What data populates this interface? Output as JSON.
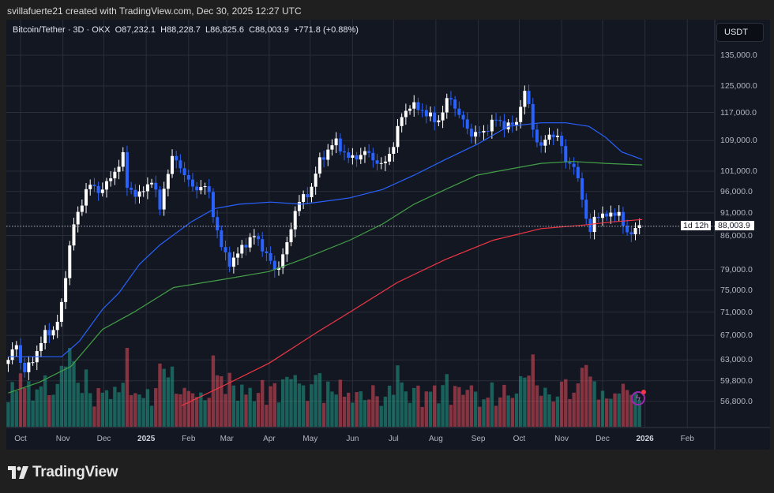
{
  "header": {
    "credit": "svillafuerte21 created with TradingView.com, Dec 30, 2025 12:27 UTC"
  },
  "legend": {
    "symbol": "Bitcoin/Tether · 3D · OKX",
    "open": "O87,232.1",
    "high": "H88,228.7",
    "low": "L86,825.6",
    "close": "C88,003.9",
    "change": "+771.8 (+0.88%)"
  },
  "price_axis": {
    "currency": "USDT",
    "ticks": [
      "135,000.0",
      "125,000.0",
      "117,000.0",
      "109,000.0",
      "101,000.0",
      "96,000.0",
      "91,000.0",
      "86,000.0",
      "79,000.0",
      "75,000.0",
      "71,000.0",
      "67,000.0",
      "63,000.0",
      "59,800.0",
      "56,800.0"
    ],
    "last_price": "88,003.9",
    "countdown": "1d 12h"
  },
  "time_axis": {
    "ticks": [
      {
        "label": "Oct",
        "date": "2024-10-01",
        "bold": false
      },
      {
        "label": "Nov",
        "date": "2024-11-01",
        "bold": false
      },
      {
        "label": "Dec",
        "date": "2024-12-01",
        "bold": false
      },
      {
        "label": "2025",
        "date": "2025-01-01",
        "bold": true
      },
      {
        "label": "Feb",
        "date": "2025-02-01",
        "bold": false
      },
      {
        "label": "Mar",
        "date": "2025-03-01",
        "bold": false
      },
      {
        "label": "Apr",
        "date": "2025-04-01",
        "bold": false
      },
      {
        "label": "May",
        "date": "2025-05-01",
        "bold": false
      },
      {
        "label": "Jun",
        "date": "2025-06-01",
        "bold": false
      },
      {
        "label": "Jul",
        "date": "2025-07-01",
        "bold": false
      },
      {
        "label": "Aug",
        "date": "2025-08-01",
        "bold": false
      },
      {
        "label": "Sep",
        "date": "2025-09-01",
        "bold": false
      },
      {
        "label": "Oct",
        "date": "2025-10-01",
        "bold": false
      },
      {
        "label": "Nov",
        "date": "2025-11-01",
        "bold": false
      },
      {
        "label": "Dec",
        "date": "2025-12-01",
        "bold": false
      },
      {
        "label": "2026",
        "date": "2026-01-01",
        "bold": true
      },
      {
        "label": "Feb",
        "date": "2026-02-01",
        "bold": false
      }
    ]
  },
  "chart_data": {
    "type": "candlestick",
    "interval": "3D",
    "y_scale": "log",
    "ylim": [
      56000,
      140000
    ],
    "grid": true,
    "colors": {
      "up": "#ffffff",
      "down": "#2962ff",
      "vol_up": "#22ab94",
      "vol_down": "#f7525f",
      "ma_blue": "#2962ff",
      "ma_green": "#43a047",
      "ma_red": "#f23645"
    },
    "close_path": [
      [
        "2024-09-22",
        63000
      ],
      [
        "2024-09-28",
        65500
      ],
      [
        "2024-10-03",
        61000
      ],
      [
        "2024-10-09",
        62500
      ],
      [
        "2024-10-18",
        67000
      ],
      [
        "2024-10-26",
        68000
      ],
      [
        "2024-10-31",
        72000
      ],
      [
        "2024-11-04",
        80000
      ],
      [
        "2024-11-08",
        88000
      ],
      [
        "2024-11-13",
        91000
      ],
      [
        "2024-11-19",
        98000
      ],
      [
        "2024-11-27",
        96000
      ],
      [
        "2024-12-06",
        99000
      ],
      [
        "2024-12-15",
        105000
      ],
      [
        "2024-12-18",
        97000
      ],
      [
        "2024-12-27",
        95000
      ],
      [
        "2025-01-05",
        99000
      ],
      [
        "2025-01-11",
        92000
      ],
      [
        "2025-01-16",
        100000
      ],
      [
        "2025-01-21",
        105000
      ],
      [
        "2025-01-28",
        101000
      ],
      [
        "2025-02-03",
        97000
      ],
      [
        "2025-02-15",
        97000
      ],
      [
        "2025-02-24",
        84000
      ],
      [
        "2025-03-04",
        80000
      ],
      [
        "2025-03-13",
        84000
      ],
      [
        "2025-03-22",
        86000
      ],
      [
        "2025-04-06",
        78500
      ],
      [
        "2025-04-14",
        84000
      ],
      [
        "2025-04-21",
        93000
      ],
      [
        "2025-05-01",
        96000
      ],
      [
        "2025-05-07",
        103000
      ],
      [
        "2025-05-19",
        109000
      ],
      [
        "2025-05-30",
        104000
      ],
      [
        "2025-06-11",
        106000
      ],
      [
        "2025-06-23",
        102000
      ],
      [
        "2025-07-01",
        108000
      ],
      [
        "2025-07-07",
        116000
      ],
      [
        "2025-07-13",
        119000
      ],
      [
        "2025-07-21",
        118000
      ],
      [
        "2025-08-02",
        114000
      ],
      [
        "2025-08-11",
        122000
      ],
      [
        "2025-08-17",
        117000
      ],
      [
        "2025-08-26",
        111000
      ],
      [
        "2025-09-04",
        111000
      ],
      [
        "2025-09-13",
        115000
      ],
      [
        "2025-09-22",
        113000
      ],
      [
        "2025-09-30",
        114000
      ],
      [
        "2025-10-03",
        123000
      ],
      [
        "2025-10-07",
        122000
      ],
      [
        "2025-10-11",
        112000
      ],
      [
        "2025-10-17",
        107000
      ],
      [
        "2025-10-23",
        111000
      ],
      [
        "2025-10-29",
        110000
      ],
      [
        "2025-11-04",
        104000
      ],
      [
        "2025-11-10",
        102000
      ],
      [
        "2025-11-16",
        95000
      ],
      [
        "2025-11-21",
        86000
      ],
      [
        "2025-11-27",
        91000
      ],
      [
        "2025-12-06",
        90000
      ],
      [
        "2025-12-12",
        92000
      ],
      [
        "2025-12-18",
        86000
      ],
      [
        "2025-12-24",
        87500
      ],
      [
        "2025-12-30",
        88003.9
      ]
    ],
    "moving_averages": [
      {
        "color": "#2962ff",
        "points": [
          [
            "2024-09-22",
            63500
          ],
          [
            "2024-10-31",
            63500
          ],
          [
            "2024-11-13",
            66000
          ],
          [
            "2024-11-30",
            71500
          ],
          [
            "2024-12-12",
            74500
          ],
          [
            "2024-12-27",
            80000
          ],
          [
            "2025-01-11",
            84000
          ],
          [
            "2025-02-03",
            89000
          ],
          [
            "2025-02-20",
            92000
          ],
          [
            "2025-03-10",
            93000
          ],
          [
            "2025-04-02",
            93500
          ],
          [
            "2025-04-25",
            93000
          ],
          [
            "2025-05-19",
            94000
          ],
          [
            "2025-05-30",
            94500
          ],
          [
            "2025-06-23",
            96500
          ],
          [
            "2025-07-16",
            100000
          ],
          [
            "2025-08-08",
            104000
          ],
          [
            "2025-08-31",
            108000
          ],
          [
            "2025-09-23",
            113000
          ],
          [
            "2025-10-17",
            114000
          ],
          [
            "2025-11-04",
            114000
          ],
          [
            "2025-11-21",
            113000
          ],
          [
            "2025-12-03",
            110000
          ],
          [
            "2025-12-15",
            106000
          ],
          [
            "2025-12-30",
            104000
          ]
        ]
      },
      {
        "color": "#43a047",
        "points": [
          [
            "2024-09-22",
            58000
          ],
          [
            "2024-10-15",
            59600
          ],
          [
            "2024-11-07",
            62000
          ],
          [
            "2024-11-30",
            68000
          ],
          [
            "2024-12-23",
            71000
          ],
          [
            "2025-01-21",
            75500
          ],
          [
            "2025-02-25",
            77000
          ],
          [
            "2025-04-01",
            78600
          ],
          [
            "2025-04-25",
            81000
          ],
          [
            "2025-05-30",
            85000
          ],
          [
            "2025-06-23",
            88500
          ],
          [
            "2025-07-16",
            93000
          ],
          [
            "2025-08-08",
            96500
          ],
          [
            "2025-08-31",
            100000
          ],
          [
            "2025-09-23",
            101500
          ],
          [
            "2025-10-17",
            103000
          ],
          [
            "2025-11-09",
            103500
          ],
          [
            "2025-12-03",
            103000
          ],
          [
            "2025-12-30",
            102600
          ]
        ]
      },
      {
        "color": "#f23645",
        "points": [
          [
            "2025-01-27",
            56200
          ],
          [
            "2025-02-26",
            59000
          ],
          [
            "2025-04-01",
            62500
          ],
          [
            "2025-05-06",
            67500
          ],
          [
            "2025-05-30",
            71000
          ],
          [
            "2025-07-04",
            76500
          ],
          [
            "2025-08-08",
            81000
          ],
          [
            "2025-09-12",
            85000
          ],
          [
            "2025-10-17",
            87500
          ],
          [
            "2025-11-15",
            88200
          ],
          [
            "2025-12-09",
            89000
          ],
          [
            "2025-12-30",
            89500
          ]
        ]
      }
    ]
  },
  "brand": {
    "name": "TradingView"
  }
}
